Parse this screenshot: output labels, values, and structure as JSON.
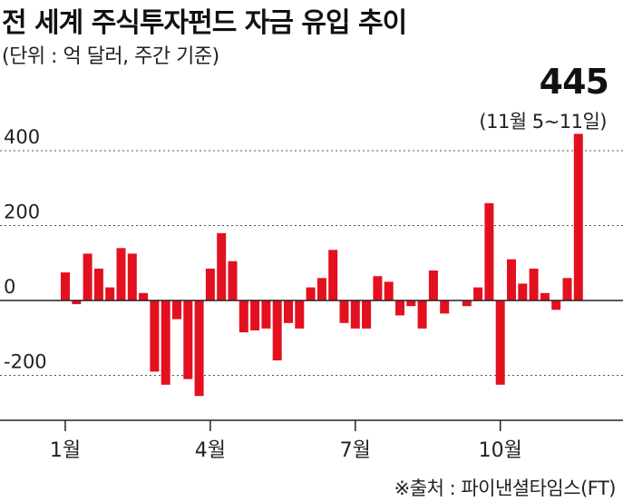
{
  "header": {
    "title": "전 세계 주식투자펀드 자금 유입 추이",
    "unit": "(단위 : 억 달러, 주간 기준)"
  },
  "callout": {
    "value": "445",
    "date": "(11월 5~11일)"
  },
  "source": "※출처 : 파이낸셜타임스(FT)",
  "colors": {
    "bar": "#e3101f",
    "axis": "#222222",
    "grid": "#555555"
  },
  "chart_data": {
    "type": "bar",
    "title": "전 세계 주식투자펀드 자금 유입 추이",
    "ylabel": "",
    "xlabel": "",
    "ylim": [
      -280,
      460
    ],
    "yticks": [
      400,
      200,
      0,
      -200
    ],
    "ytick_labels": [
      "400",
      "200",
      "0",
      "-200"
    ],
    "xtick_labels": [
      "1월",
      "4월",
      "7월",
      "10월"
    ],
    "xtick_positions": [
      0,
      13,
      26,
      39
    ],
    "grid": "dotted horizontal at 400, 200, -200",
    "values": [
      75,
      -10,
      125,
      85,
      35,
      140,
      125,
      20,
      -190,
      -225,
      -50,
      -210,
      -255,
      85,
      180,
      105,
      -85,
      -80,
      -75,
      -160,
      -60,
      -75,
      35,
      60,
      135,
      -60,
      -75,
      -75,
      65,
      50,
      -40,
      -15,
      -75,
      80,
      -35,
      0,
      -15,
      35,
      260,
      -225,
      110,
      45,
      85,
      20,
      -25,
      60,
      445
    ]
  }
}
